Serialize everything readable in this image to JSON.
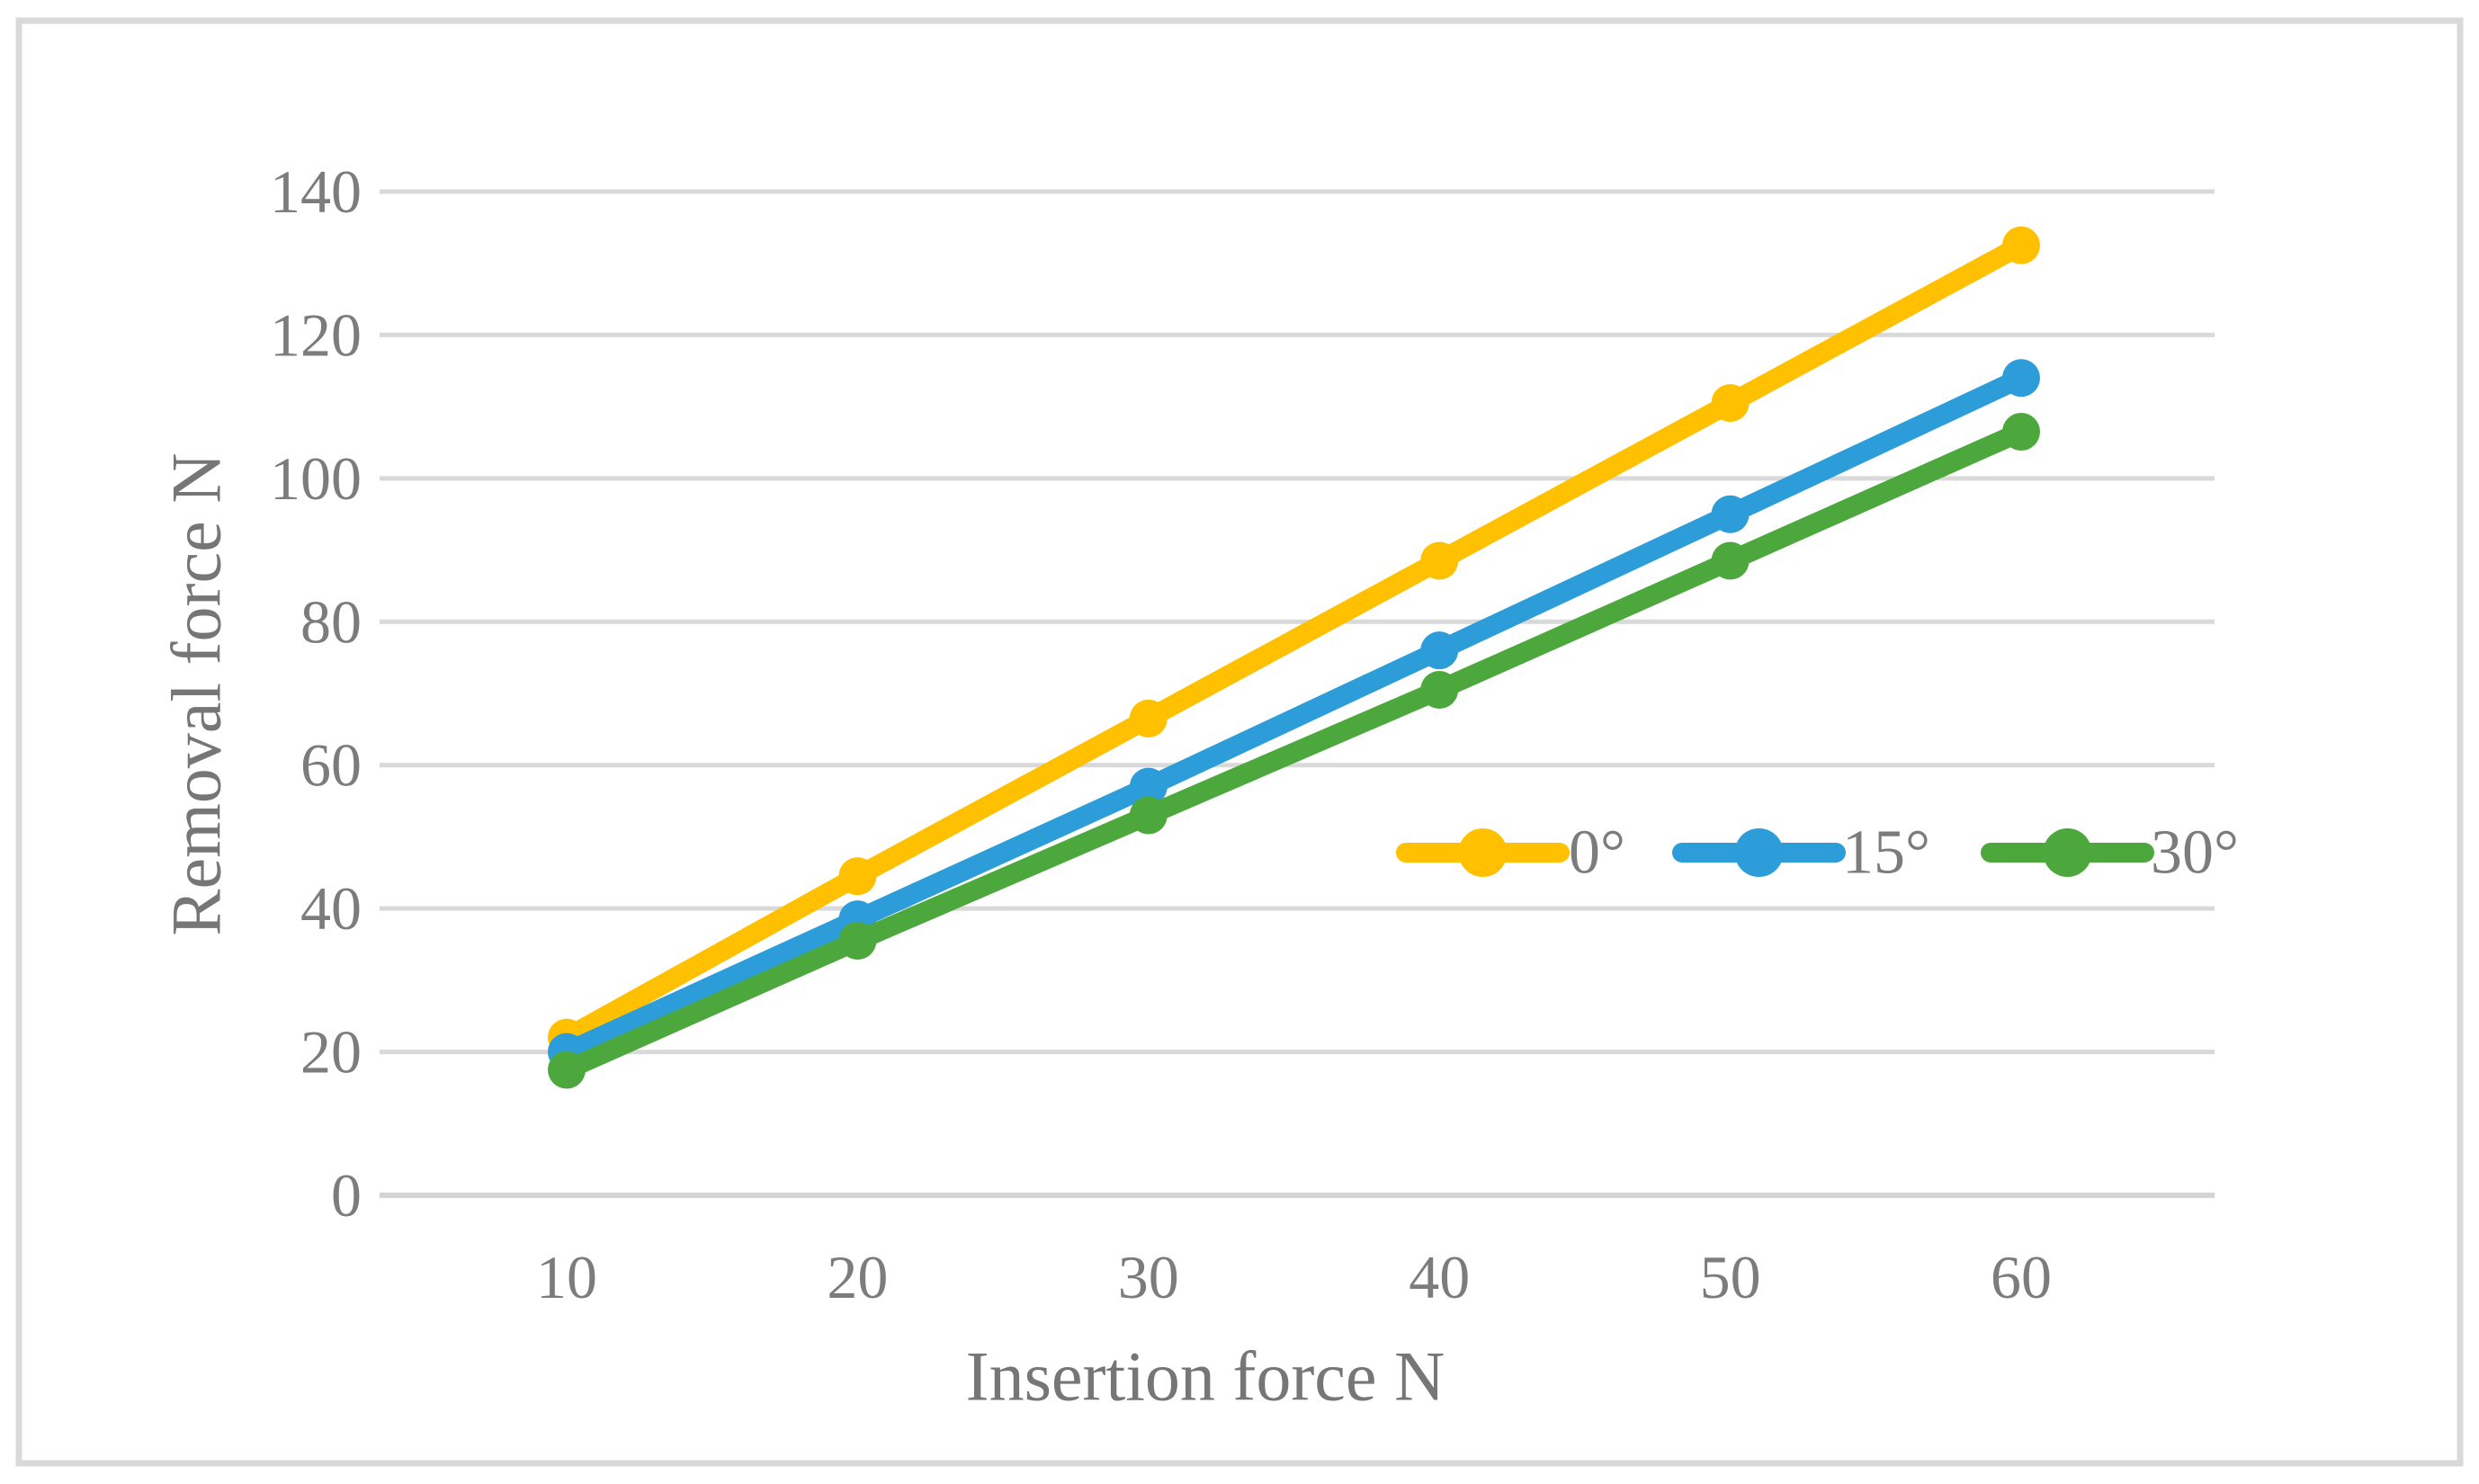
{
  "figure": {
    "background_color": "#ffffff",
    "border_color": "#d9d9d9",
    "gridline_color": "#d9d9d9",
    "axis_line_color": "#d4d4d4",
    "text_color": "#7c7c7c"
  },
  "chart_data": {
    "type": "line",
    "title": "",
    "xlabel": "Insertion force N",
    "ylabel": "Removal force N",
    "x": [
      10,
      20,
      30,
      40,
      50,
      60
    ],
    "x_tick_labels": [
      "10",
      "20",
      "30",
      "40",
      "50",
      "60"
    ],
    "y_tick_labels": [
      "0",
      "20",
      "40",
      "60",
      "80",
      "100",
      "120",
      "140"
    ],
    "ylim": [
      0,
      140
    ],
    "ytick_step": 20,
    "grid": "horizontal",
    "legend_position": "inside-middle-right",
    "marker": "circle",
    "series": [
      {
        "name": "0°",
        "color": "#FFC000",
        "values": [
          22.0,
          44.5,
          66.5,
          88.5,
          110.5,
          132.5
        ]
      },
      {
        "name": "15°",
        "color": "#2D9DD9",
        "values": [
          20.0,
          38.5,
          57.0,
          76.0,
          95.0,
          114.0
        ]
      },
      {
        "name": "30°",
        "color": "#4CA83C",
        "values": [
          17.5,
          35.5,
          53.0,
          70.5,
          88.5,
          106.5
        ]
      }
    ]
  }
}
